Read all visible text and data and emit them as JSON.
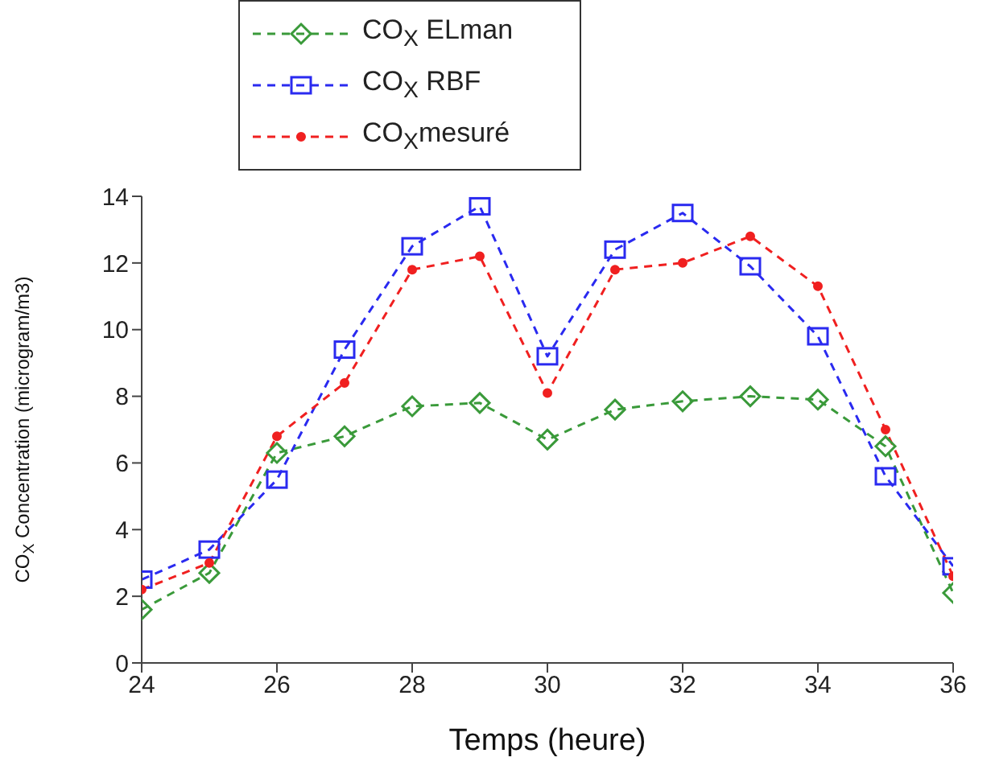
{
  "chart_data": {
    "type": "line",
    "xlabel": "Temps (heure)",
    "ylabel": "CO$_{X}$ Concentration (microgram/m3)",
    "x": [
      24,
      25,
      26,
      27,
      28,
      29,
      30,
      31,
      32,
      33,
      34,
      35,
      36
    ],
    "series": [
      {
        "name": "CO$_{X}$ ELman",
        "color": "#3a9a3a",
        "marker": "diamond",
        "values": [
          1.6,
          2.7,
          6.3,
          6.8,
          7.7,
          7.8,
          6.7,
          7.6,
          7.85,
          8.0,
          7.9,
          6.5,
          2.1
        ]
      },
      {
        "name": "CO$_{X}$ RBF",
        "color": "#2a2af0",
        "marker": "square",
        "values": [
          2.5,
          3.4,
          5.5,
          9.4,
          12.5,
          13.7,
          9.2,
          12.4,
          13.5,
          11.9,
          9.8,
          5.6,
          2.9
        ]
      },
      {
        "name": "CO$_{X}$mesuré",
        "color": "#f02020",
        "marker": "circle",
        "values": [
          2.2,
          3.0,
          6.8,
          8.4,
          11.8,
          12.2,
          8.1,
          11.8,
          12.0,
          12.8,
          11.3,
          7.0,
          2.6
        ]
      }
    ],
    "xlim": [
      24,
      36
    ],
    "xticks": [
      24,
      26,
      28,
      30,
      32,
      34,
      36
    ],
    "ylim": [
      0,
      14
    ],
    "yticks": [
      0,
      2,
      4,
      6,
      8,
      10,
      12,
      14
    ],
    "grid": false,
    "legend": "top left",
    "line_style": "dashed"
  }
}
